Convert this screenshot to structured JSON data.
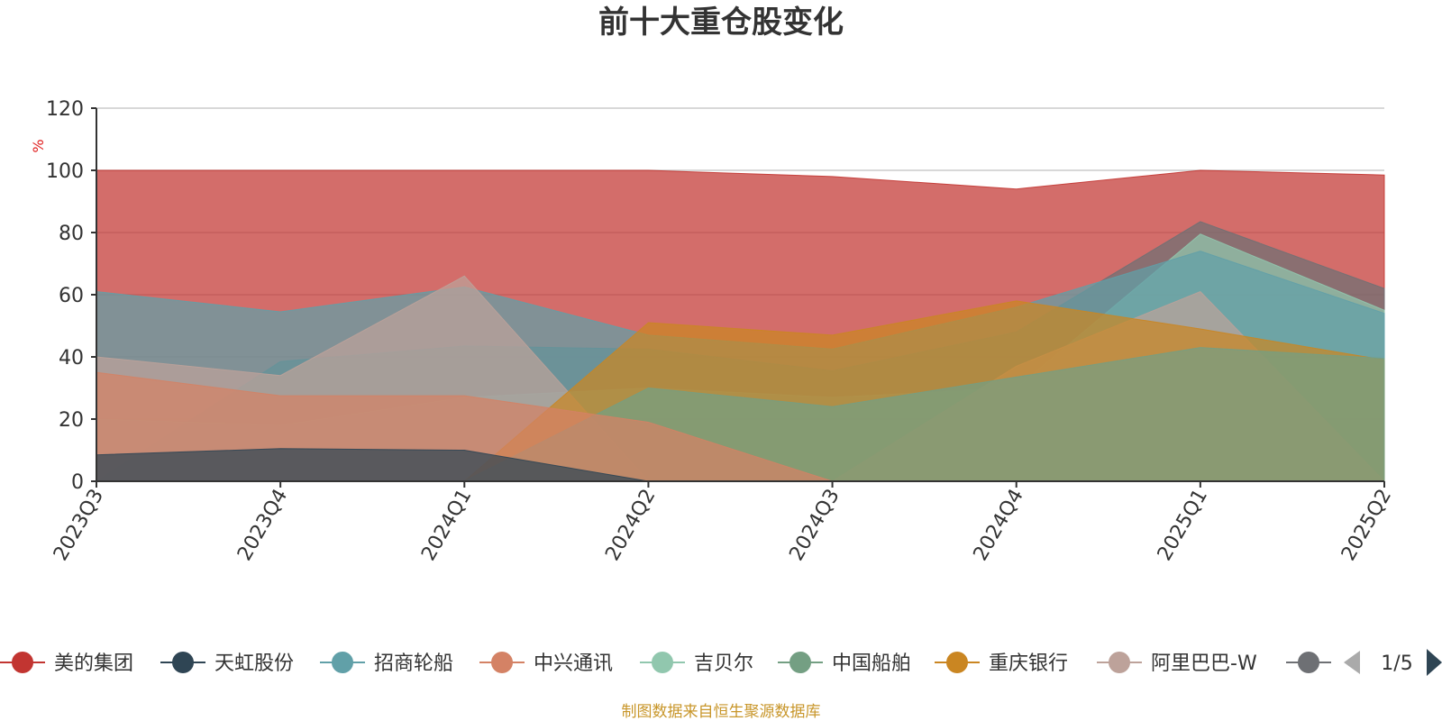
{
  "chart_data": {
    "type": "area",
    "title": "前十大重仓股变化",
    "ylabel": "%",
    "ylim": [
      0,
      120
    ],
    "yticks": [
      0,
      20,
      40,
      60,
      80,
      100,
      120
    ],
    "grid": true,
    "categories": [
      "2023Q3",
      "2023Q4",
      "2024Q1",
      "2024Q2",
      "2024Q3",
      "2024Q4",
      "2025Q1",
      "2025Q2"
    ],
    "series": [
      {
        "name": "美的集团",
        "color": "#c23531",
        "values": [
          100,
          100,
          100,
          100,
          98,
          94,
          100,
          98.5
        ]
      },
      {
        "name": "天虹股份",
        "color": "#2f4554",
        "values": [
          8.5,
          10.5,
          10,
          0,
          0,
          0,
          0,
          0
        ]
      },
      {
        "name": "招商轮船",
        "color": "#61a0a8",
        "values": [
          61,
          54.5,
          62.5,
          47,
          42.5,
          56,
          74,
          54
        ]
      },
      {
        "name": "中兴通讯",
        "color": "#d48265",
        "values": [
          35,
          27.5,
          27.5,
          19,
          0,
          0,
          0,
          0
        ]
      },
      {
        "name": "吉贝尔",
        "color": "#91c7ae",
        "values": [
          20,
          18,
          27,
          30,
          27,
          30,
          79.5,
          55
        ]
      },
      {
        "name": "中国船舶",
        "color": "#749f83",
        "values": [
          0,
          0,
          0,
          30,
          24,
          33.5,
          43,
          39.5
        ]
      },
      {
        "name": "重庆银行",
        "color": "#ca8622",
        "values": [
          0,
          0,
          0,
          51,
          47,
          58,
          49,
          39
        ]
      },
      {
        "name": "阿里巴巴-W",
        "color": "#bda29a",
        "values": [
          40,
          34,
          66,
          0,
          0,
          37,
          61,
          0
        ]
      },
      {
        "name": "",
        "color": "#6e7074",
        "values": [
          0,
          38.5,
          43.5,
          42.5,
          35.5,
          48,
          83.5,
          62
        ]
      }
    ],
    "legend": {
      "position": "bottom",
      "page": "1/5"
    },
    "source": "制图数据来自恒生聚源数据库"
  },
  "colors": {
    "axis": "#333333",
    "grid": "#cccccc",
    "pager_active": "#2f4554",
    "pager_inactive": "#aaaaaa"
  }
}
